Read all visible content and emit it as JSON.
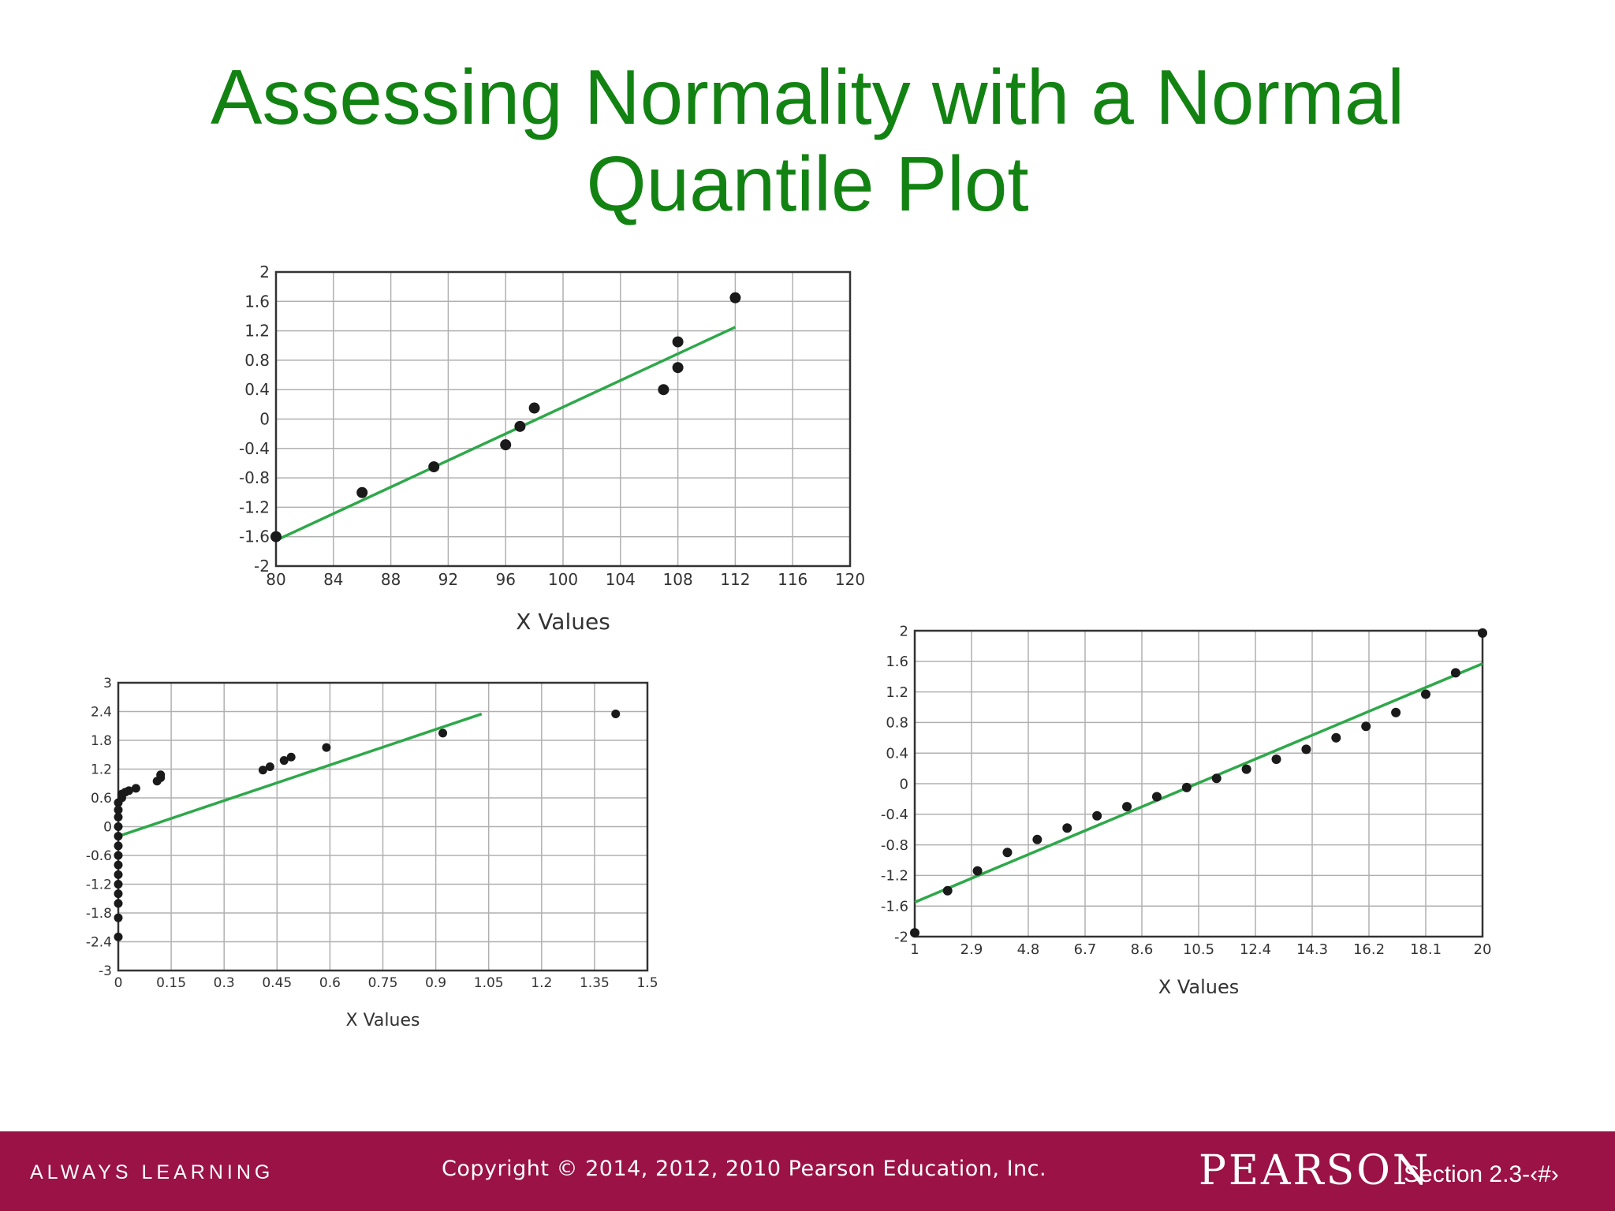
{
  "title": {
    "line1": "Assessing Normality with a Normal",
    "line2": "Quantile Plot"
  },
  "footer": {
    "tagline": "ALWAYS LEARNING",
    "copyright": "Copyright © 2014, 2012, 2010 Pearson Education, Inc.",
    "brand": "PEARSON",
    "section": "Section 2.3-‹#›"
  },
  "colors": {
    "title": "#128312",
    "fit_line": "#2ea84a",
    "points": "#1a1a1a",
    "footer_bg": "#9b1246"
  },
  "chart_data": [
    {
      "type": "scatter",
      "title": "",
      "xlabel": "X Values",
      "ylabel": "",
      "xlim": [
        80,
        120
      ],
      "ylim": [
        -2,
        2
      ],
      "x_ticks": [
        "80",
        "84",
        "88",
        "92",
        "96",
        "100",
        "104",
        "108",
        "112",
        "116",
        "120"
      ],
      "y_ticks": [
        "2",
        "1.6",
        "1.2",
        "0.8",
        "0.4",
        "0",
        "-0.4",
        "-0.8",
        "-1.2",
        "-1.6",
        "-2"
      ],
      "points": [
        [
          80,
          -1.6
        ],
        [
          86,
          -1.0
        ],
        [
          91,
          -0.65
        ],
        [
          96,
          -0.35
        ],
        [
          97,
          -0.1
        ],
        [
          98,
          0.15
        ],
        [
          107,
          0.4
        ],
        [
          108,
          0.7
        ],
        [
          108,
          1.05
        ],
        [
          112,
          1.65
        ]
      ],
      "fit_line": [
        [
          80,
          -1.65
        ],
        [
          112,
          1.25
        ]
      ],
      "grid": true
    },
    {
      "type": "scatter",
      "title": "",
      "xlabel": "X Values",
      "ylabel": "",
      "xlim": [
        0,
        1.5
      ],
      "ylim": [
        -3,
        3
      ],
      "x_ticks": [
        "0",
        "0.15",
        "0.3",
        "0.45",
        "0.6",
        "0.75",
        "0.9",
        "1.05",
        "1.2",
        "1.35",
        "1.5"
      ],
      "y_ticks": [
        "3",
        "2.4",
        "1.8",
        "1.2",
        "0.6",
        "0",
        "-0.6",
        "-1.2",
        "-1.8",
        "-2.4",
        "-3"
      ],
      "points": [
        [
          0,
          -2.3
        ],
        [
          0,
          -1.9
        ],
        [
          0,
          -1.6
        ],
        [
          0,
          -1.4
        ],
        [
          0,
          -1.2
        ],
        [
          0,
          -1.0
        ],
        [
          0,
          -0.8
        ],
        [
          0,
          -0.6
        ],
        [
          0,
          -0.4
        ],
        [
          0,
          -0.2
        ],
        [
          0,
          0.0
        ],
        [
          0,
          0.2
        ],
        [
          0,
          0.35
        ],
        [
          0,
          0.5
        ],
        [
          0.01,
          0.6
        ],
        [
          0.01,
          0.68
        ],
        [
          0.02,
          0.72
        ],
        [
          0.03,
          0.75
        ],
        [
          0.05,
          0.8
        ],
        [
          0.11,
          0.95
        ],
        [
          0.12,
          1.02
        ],
        [
          0.12,
          1.08
        ],
        [
          0.41,
          1.18
        ],
        [
          0.43,
          1.25
        ],
        [
          0.47,
          1.38
        ],
        [
          0.49,
          1.45
        ],
        [
          0.59,
          1.65
        ],
        [
          0.92,
          1.95
        ],
        [
          1.41,
          2.35
        ]
      ],
      "fit_line": [
        [
          0,
          -0.2
        ],
        [
          1.03,
          2.35
        ]
      ],
      "grid": true
    },
    {
      "type": "scatter",
      "title": "",
      "xlabel": "X Values",
      "ylabel": "",
      "xlim": [
        1,
        20
      ],
      "ylim": [
        -2,
        2
      ],
      "x_ticks": [
        "1",
        "2.9",
        "4.8",
        "6.7",
        "8.6",
        "10.5",
        "12.4",
        "14.3",
        "16.2",
        "18.1",
        "20"
      ],
      "y_ticks": [
        "2",
        "1.6",
        "1.2",
        "0.8",
        "0.4",
        "0",
        "-0.4",
        "-0.8",
        "-1.2",
        "-1.6",
        "-2"
      ],
      "points": [
        [
          1,
          -1.95
        ],
        [
          2.1,
          -1.4
        ],
        [
          3.1,
          -1.14
        ],
        [
          4.1,
          -0.9
        ],
        [
          5.1,
          -0.73
        ],
        [
          6.1,
          -0.58
        ],
        [
          7.1,
          -0.42
        ],
        [
          8.1,
          -0.3
        ],
        [
          9.1,
          -0.17
        ],
        [
          10.1,
          -0.05
        ],
        [
          11.1,
          0.07
        ],
        [
          12.1,
          0.19
        ],
        [
          13.1,
          0.32
        ],
        [
          14.1,
          0.45
        ],
        [
          15.1,
          0.6
        ],
        [
          16.1,
          0.75
        ],
        [
          17.1,
          0.93
        ],
        [
          18.1,
          1.17
        ],
        [
          19.1,
          1.45
        ],
        [
          20,
          1.97
        ]
      ],
      "fit_line": [
        [
          1,
          -1.55
        ],
        [
          20,
          1.57
        ]
      ],
      "grid": true
    }
  ]
}
